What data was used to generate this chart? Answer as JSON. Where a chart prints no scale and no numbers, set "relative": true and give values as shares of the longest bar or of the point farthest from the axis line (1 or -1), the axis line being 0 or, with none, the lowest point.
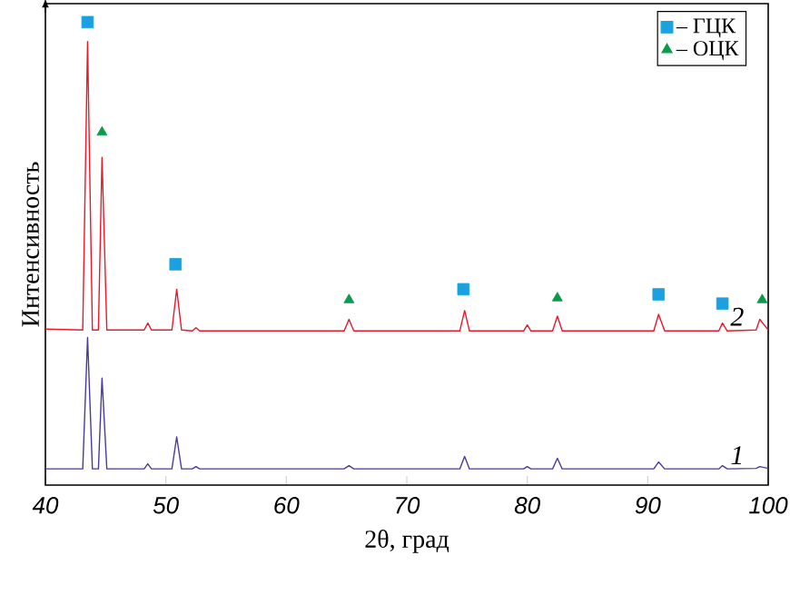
{
  "chart_data": {
    "type": "line",
    "xlabel": "2θ, град",
    "ylabel": "Интенсивность",
    "relative": true,
    "xlim": [
      40,
      100
    ],
    "xticks": [
      40,
      50,
      60,
      70,
      80,
      90,
      100
    ],
    "legend": "top right",
    "grid": false,
    "x": [
      40,
      43.1,
      43.5,
      43.9,
      44.4,
      44.7,
      45.1,
      48.2,
      48.5,
      48.8,
      50.5,
      50.9,
      51.3,
      52.2,
      52.5,
      52.8,
      64.8,
      65.2,
      65.6,
      74.4,
      74.8,
      75.2,
      79.7,
      80.0,
      80.3,
      82.1,
      82.5,
      82.9,
      90.5,
      90.9,
      91.4,
      95.9,
      96.2,
      96.6,
      99.0,
      99.3,
      100
    ],
    "series": [
      {
        "name": "2",
        "color": "#e8192c",
        "values": [
          0.337,
          0.335,
          0.958,
          0.335,
          0.335,
          0.708,
          0.335,
          0.335,
          0.35,
          0.335,
          0.335,
          0.423,
          0.335,
          0.333,
          0.34,
          0.333,
          0.333,
          0.358,
          0.333,
          0.333,
          0.377,
          0.333,
          0.333,
          0.346,
          0.333,
          0.333,
          0.365,
          0.333,
          0.333,
          0.369,
          0.333,
          0.333,
          0.35,
          0.333,
          0.335,
          0.358,
          0.335
        ]
      },
      {
        "name": "1",
        "color": "#4b3a99",
        "values": [
          0.035,
          0.035,
          0.319,
          0.035,
          0.035,
          0.231,
          0.035,
          0.035,
          0.046,
          0.035,
          0.035,
          0.104,
          0.035,
          0.035,
          0.04,
          0.035,
          0.035,
          0.042,
          0.035,
          0.035,
          0.062,
          0.035,
          0.035,
          0.04,
          0.035,
          0.035,
          0.058,
          0.035,
          0.035,
          0.05,
          0.035,
          0.035,
          0.042,
          0.035,
          0.036,
          0.04,
          0.036
        ]
      },
      {
        "name": "– ГЦК",
        "type": "scatter",
        "marker": "square",
        "color": "#1ba1e2",
        "x": [
          43.5,
          50.8,
          74.7,
          90.9,
          96.2
        ],
        "values": [
          1.0,
          0.477,
          0.423,
          0.412,
          0.392
        ]
      },
      {
        "name": "– ОЦК",
        "type": "scatter",
        "marker": "triangle",
        "color": "#0a9a4a",
        "x": [
          44.7,
          65.2,
          82.5,
          99.5
        ],
        "values": [
          0.762,
          0.4,
          0.404,
          0.4
        ]
      }
    ]
  }
}
